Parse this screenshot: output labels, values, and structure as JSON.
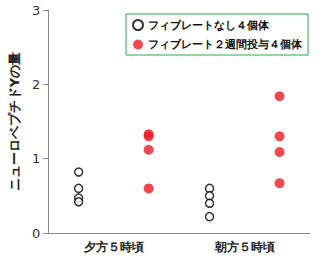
{
  "chart_data": {
    "type": "scatter",
    "y_label": "ニューロペプチドYの量",
    "categories": [
      "夕方５時頃",
      "朝方５時頃"
    ],
    "series": [
      {
        "name": "フィブレートなし４個体",
        "color": "#000000",
        "marker": "circle_open",
        "values": [
          [
            0.82,
            0.6,
            0.47,
            0.42
          ],
          [
            0.6,
            0.5,
            0.4,
            0.22
          ]
        ]
      },
      {
        "name": "フィブレート２週間投与４個体",
        "color": "#ee1c25",
        "marker": "circle",
        "values": [
          [
            1.33,
            1.3,
            1.12,
            0.6
          ],
          [
            1.84,
            1.3,
            1.09,
            0.67
          ]
        ]
      }
    ],
    "ylim": [
      0,
      3
    ],
    "yticks": [
      0,
      1,
      2,
      3
    ],
    "grid": false,
    "legend": "upper right"
  }
}
